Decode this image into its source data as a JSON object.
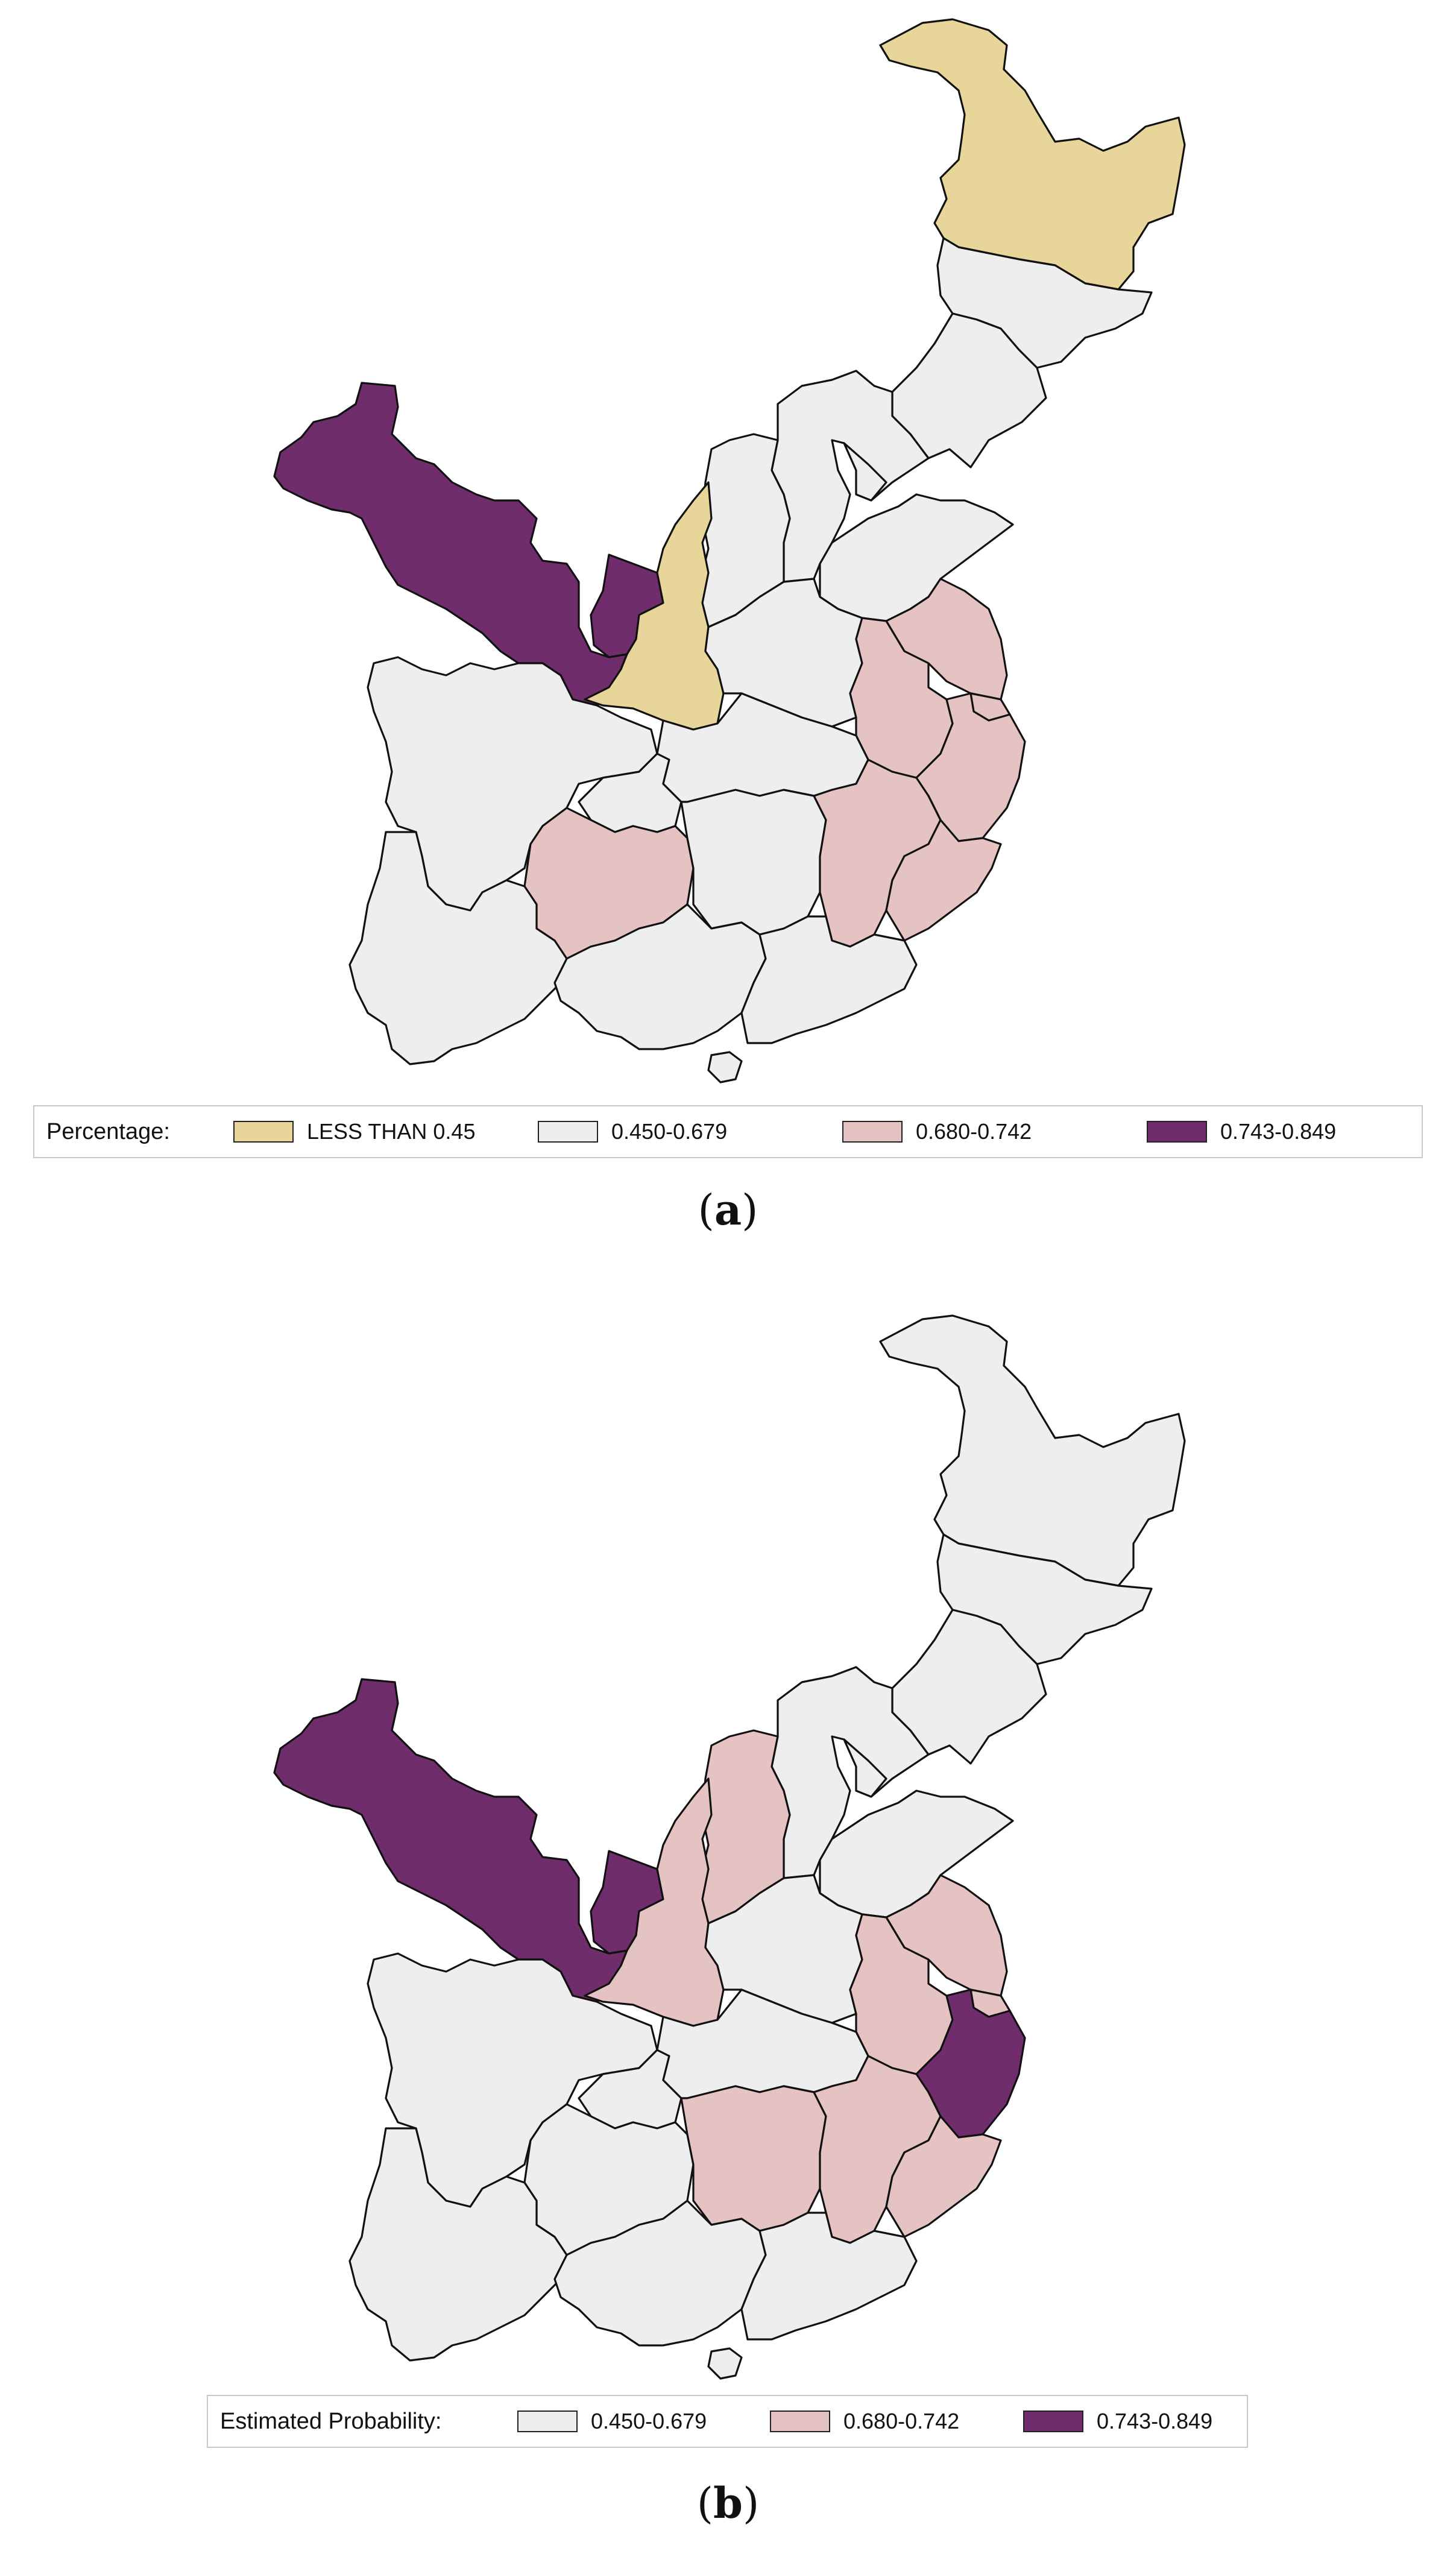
{
  "colors": {
    "yellow": "#e7d59a",
    "light_gray": "#eeeeee",
    "pink": "#e6c3c3",
    "purple": "#6f2d6b",
    "border": "#111111"
  },
  "panels": [
    {
      "caption_letter": "a",
      "legend": {
        "title": "Percentage:",
        "items": [
          {
            "label": "LESS THAN 0.45",
            "color": "#e7d59a"
          },
          {
            "label": "0.450-0.679",
            "color": "#eeeeee"
          },
          {
            "label": "0.680-0.742",
            "color": "#e6c3c3"
          },
          {
            "label": "0.743-0.849",
            "color": "#6f2d6b"
          }
        ]
      },
      "regions": {
        "heilongjiang": "#e7d59a",
        "jilin": "#eeeeee",
        "liaoning": "#eeeeee",
        "beijing_hebei": "#eeeeee",
        "tianjin": "#eeeeee",
        "shanxi": "#eeeeee",
        "shandong": "#eeeeee",
        "gansu": "#6f2d6b",
        "ningxia": "#6f2d6b",
        "shaanxi": "#e7d59a",
        "henan": "#eeeeee",
        "jiangsu": "#e6c3c3",
        "anhui": "#e6c3c3",
        "shanghai": "#e6c3c3",
        "zhejiang": "#e6c3c3",
        "sichuan": "#eeeeee",
        "chongqing": "#eeeeee",
        "hubei": "#eeeeee",
        "guizhou": "#e6c3c3",
        "hunan": "#eeeeee",
        "jiangxi": "#e6c3c3",
        "fujian": "#e6c3c3",
        "yunnan": "#eeeeee",
        "guangxi": "#eeeeee",
        "guangdong": "#eeeeee",
        "hainan": "#eeeeee"
      }
    },
    {
      "caption_letter": "b",
      "legend": {
        "title": "Estimated Probability:",
        "items": [
          {
            "label": "0.450-0.679",
            "color": "#eeeeee"
          },
          {
            "label": "0.680-0.742",
            "color": "#e6c3c3"
          },
          {
            "label": "0.743-0.849",
            "color": "#6f2d6b"
          }
        ]
      },
      "regions": {
        "heilongjiang": "#eeeeee",
        "jilin": "#eeeeee",
        "liaoning": "#eeeeee",
        "beijing_hebei": "#eeeeee",
        "tianjin": "#eeeeee",
        "shanxi": "#e6c3c3",
        "shandong": "#eeeeee",
        "gansu": "#6f2d6b",
        "ningxia": "#6f2d6b",
        "shaanxi": "#e6c3c3",
        "henan": "#eeeeee",
        "jiangsu": "#e6c3c3",
        "anhui": "#e6c3c3",
        "shanghai": "#e6c3c3",
        "zhejiang": "#6f2d6b",
        "sichuan": "#eeeeee",
        "chongqing": "#eeeeee",
        "hubei": "#eeeeee",
        "guizhou": "#eeeeee",
        "hunan": "#e6c3c3",
        "jiangxi": "#e6c3c3",
        "fujian": "#e6c3c3",
        "yunnan": "#eeeeee",
        "guangxi": "#eeeeee",
        "guangdong": "#eeeeee",
        "hainan": "#eeeeee"
      }
    }
  ]
}
